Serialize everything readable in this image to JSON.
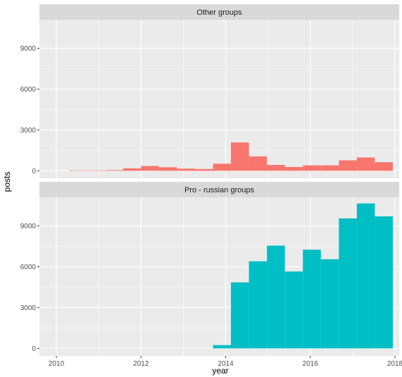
{
  "chart_data": {
    "type": "bar",
    "xlabel": "year",
    "ylabel": "posts",
    "xlim": [
      2009.6,
      2018.1
    ],
    "ylim": [
      -550,
      11100
    ],
    "x_ticks": [
      "2010",
      "2012",
      "2014",
      "2016",
      "2018"
    ],
    "y_ticks": [
      "0",
      "3000",
      "6000",
      "9000"
    ],
    "grid": true,
    "bin_width": 0.425,
    "bin_starts": [
      2010.3,
      2010.725,
      2011.15,
      2011.575,
      2012.0,
      2012.425,
      2012.85,
      2013.275,
      2013.7,
      2014.125,
      2014.55,
      2014.975,
      2015.4,
      2015.825,
      2016.25,
      2016.675,
      2017.1,
      2017.525
    ],
    "facets": [
      {
        "strip": "Other groups",
        "color": "#F8766D",
        "values": [
          30,
          30,
          50,
          180,
          350,
          260,
          160,
          130,
          520,
          2080,
          1060,
          430,
          280,
          400,
          400,
          770,
          980,
          630
        ]
      },
      {
        "strip": "Pro - russian groups",
        "color": "#00BFC4",
        "values": [
          0,
          0,
          0,
          0,
          0,
          0,
          0,
          0,
          240,
          4850,
          6400,
          7550,
          5650,
          7250,
          6550,
          9550,
          10650,
          9700
        ]
      }
    ]
  }
}
